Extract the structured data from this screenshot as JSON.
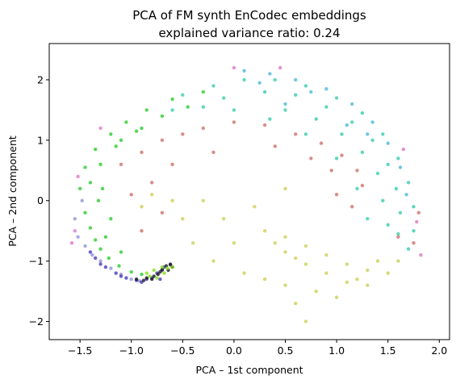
{
  "chart_data": {
    "type": "scatter",
    "title": "PCA of FM synth EnCodec embeddings",
    "subtitle": "explained variance ratio: 0.24",
    "xlabel": "PCA – 1st component",
    "ylabel": "PCA – 2nd component",
    "xlim": [
      -1.8,
      2.1
    ],
    "ylim": [
      -2.3,
      2.6
    ],
    "xticks": [
      -1.5,
      -1.0,
      -0.5,
      0.0,
      0.5,
      1.0,
      1.5,
      2.0
    ],
    "xtick_labels": [
      "−1.5",
      "−1.0",
      "−0.5",
      "0.0",
      "0.5",
      "1.0",
      "1.5",
      "2.0"
    ],
    "yticks": [
      -2,
      -1,
      0,
      1,
      2
    ],
    "ytick_labels": [
      "−2",
      "−1",
      "0",
      "1",
      "2"
    ],
    "grid": false,
    "legend": false,
    "series": [
      {
        "color": "#8b8fd6",
        "points": [
          [
            -1.52,
            -0.6
          ],
          [
            -1.45,
            -0.75
          ],
          [
            -1.38,
            -0.9
          ],
          [
            -1.3,
            -1.0
          ],
          [
            -1.2,
            -1.12
          ],
          [
            -1.1,
            -1.22
          ],
          [
            -1.0,
            -1.3
          ],
          [
            -0.92,
            -1.33
          ],
          [
            -1.55,
            -0.3
          ],
          [
            -1.48,
            0.0
          ]
        ]
      },
      {
        "color": "#3a2fb8",
        "points": [
          [
            -1.35,
            -0.95
          ],
          [
            -1.25,
            -1.1
          ],
          [
            -1.15,
            -1.2
          ],
          [
            -1.05,
            -1.28
          ],
          [
            -0.95,
            -1.32
          ],
          [
            -0.85,
            -1.3
          ],
          [
            -0.75,
            -1.2
          ],
          [
            -0.68,
            -1.1
          ],
          [
            -1.4,
            -0.85
          ],
          [
            -1.3,
            -1.05
          ],
          [
            -1.1,
            -1.25
          ],
          [
            -0.9,
            -1.35
          ],
          [
            -0.8,
            -1.28
          ],
          [
            -0.7,
            -1.15
          ],
          [
            -0.62,
            -1.05
          ],
          [
            -0.72,
            -1.3
          ]
        ]
      },
      {
        "color": "#111111",
        "points": [
          [
            -0.95,
            -1.3
          ],
          [
            -0.88,
            -1.32
          ],
          [
            -0.8,
            -1.3
          ],
          [
            -0.74,
            -1.22
          ],
          [
            -0.7,
            -1.14
          ],
          [
            -0.66,
            -1.08
          ],
          [
            -0.62,
            -1.06
          ],
          [
            -0.78,
            -1.25
          ],
          [
            -0.85,
            -1.28
          ],
          [
            -0.72,
            -1.18
          ],
          [
            -0.6,
            -1.1
          ],
          [
            -0.64,
            -1.15
          ]
        ]
      },
      {
        "color": "#20c820",
        "points": [
          [
            -1.45,
            -0.2
          ],
          [
            -1.4,
            -0.45
          ],
          [
            -1.35,
            -0.65
          ],
          [
            -1.3,
            -0.8
          ],
          [
            -1.22,
            -0.95
          ],
          [
            -1.12,
            -1.08
          ],
          [
            -1.0,
            -1.18
          ],
          [
            -0.9,
            -1.22
          ],
          [
            -1.5,
            0.2
          ],
          [
            -1.45,
            0.55
          ],
          [
            -1.35,
            0.85
          ],
          [
            -1.2,
            1.1
          ],
          [
            -1.05,
            1.3
          ],
          [
            -0.85,
            1.5
          ],
          [
            -0.6,
            1.68
          ],
          [
            -0.3,
            1.8
          ],
          [
            -1.4,
            0.3
          ],
          [
            -1.3,
            0.6
          ],
          [
            -1.15,
            0.9
          ],
          [
            -0.95,
            1.15
          ],
          [
            -0.7,
            1.4
          ],
          [
            -0.45,
            1.55
          ],
          [
            -1.25,
            -0.6
          ],
          [
            -1.1,
            -0.85
          ],
          [
            -1.28,
            0.2
          ],
          [
            -1.2,
            -0.3
          ],
          [
            -1.32,
            0.0
          ],
          [
            -0.9,
            1.2
          ],
          [
            -1.1,
            1.0
          ]
        ]
      },
      {
        "color": "#7ee012",
        "points": [
          [
            -0.85,
            -1.2
          ],
          [
            -0.78,
            -1.15
          ],
          [
            -0.7,
            -1.1
          ],
          [
            -0.65,
            -1.12
          ],
          [
            -0.75,
            -1.28
          ],
          [
            -0.82,
            -1.25
          ],
          [
            -0.68,
            -1.2
          ],
          [
            -0.6,
            -1.1
          ]
        ]
      },
      {
        "color": "#2ec9a8",
        "points": [
          [
            -0.5,
            1.75
          ],
          [
            -0.2,
            1.9
          ],
          [
            0.1,
            2.0
          ],
          [
            0.4,
            2.0
          ],
          [
            0.7,
            1.9
          ],
          [
            1.0,
            1.7
          ],
          [
            1.25,
            1.45
          ],
          [
            1.45,
            1.1
          ],
          [
            1.6,
            0.7
          ],
          [
            1.7,
            0.3
          ],
          [
            1.75,
            -0.1
          ],
          [
            1.75,
            -0.5
          ],
          [
            1.7,
            -0.8
          ],
          [
            -0.1,
            1.7
          ],
          [
            0.3,
            1.8
          ],
          [
            0.6,
            1.75
          ],
          [
            0.9,
            1.55
          ],
          [
            1.15,
            1.3
          ],
          [
            1.35,
            1.0
          ],
          [
            1.5,
            0.6
          ],
          [
            1.58,
            0.2
          ],
          [
            1.62,
            -0.2
          ],
          [
            1.6,
            -0.55
          ],
          [
            0.5,
            1.5
          ],
          [
            0.8,
            1.35
          ],
          [
            1.05,
            1.1
          ],
          [
            1.25,
            0.8
          ],
          [
            1.4,
            0.45
          ],
          [
            1.45,
            0.0
          ],
          [
            1.5,
            -0.4
          ],
          [
            1.3,
            -0.3
          ],
          [
            1.2,
            0.2
          ],
          [
            1.0,
            0.7
          ],
          [
            0.7,
            1.1
          ],
          [
            0.35,
            1.35
          ],
          [
            0.0,
            1.5
          ],
          [
            -0.3,
            1.55
          ],
          [
            -0.6,
            1.5
          ]
        ]
      },
      {
        "color": "#44b4d8",
        "points": [
          [
            0.1,
            2.15
          ],
          [
            0.35,
            2.1
          ],
          [
            0.6,
            2.0
          ],
          [
            0.9,
            1.85
          ],
          [
            1.15,
            1.6
          ],
          [
            1.35,
            1.3
          ],
          [
            1.5,
            0.95
          ],
          [
            1.62,
            0.55
          ],
          [
            1.68,
            0.1
          ],
          [
            0.25,
            1.95
          ],
          [
            0.75,
            1.8
          ],
          [
            1.3,
            1.1
          ],
          [
            0.5,
            1.6
          ],
          [
            1.1,
            1.25
          ]
        ]
      },
      {
        "color": "#c9cc4c",
        "points": [
          [
            0.3,
            -0.5
          ],
          [
            0.5,
            -0.6
          ],
          [
            0.7,
            -0.75
          ],
          [
            0.9,
            -0.9
          ],
          [
            1.1,
            -1.05
          ],
          [
            1.3,
            -1.15
          ],
          [
            1.5,
            -1.2
          ],
          [
            0.5,
            -0.85
          ],
          [
            0.7,
            -1.05
          ],
          [
            0.9,
            -1.2
          ],
          [
            1.1,
            -1.35
          ],
          [
            1.3,
            -1.4
          ],
          [
            0.8,
            -1.5
          ],
          [
            1.0,
            -1.6
          ],
          [
            1.2,
            -1.3
          ],
          [
            0.4,
            -0.7
          ],
          [
            0.6,
            -0.95
          ],
          [
            0.0,
            -0.7
          ],
          [
            -0.2,
            -1.0
          ],
          [
            0.1,
            -1.2
          ],
          [
            0.3,
            -1.3
          ],
          [
            0.5,
            -1.4
          ],
          [
            0.6,
            -1.7
          ],
          [
            0.7,
            -2.0
          ],
          [
            1.4,
            -1.0
          ],
          [
            1.6,
            -1.0
          ],
          [
            -0.4,
            -0.7
          ],
          [
            -0.1,
            -0.3
          ],
          [
            -0.3,
            0.0
          ],
          [
            -0.6,
            0.0
          ],
          [
            -0.8,
            0.1
          ],
          [
            -0.9,
            -0.1
          ],
          [
            -0.5,
            -0.3
          ],
          [
            0.2,
            -0.1
          ],
          [
            0.5,
            0.2
          ]
        ]
      },
      {
        "color": "#c86a60",
        "points": [
          [
            -1.1,
            0.6
          ],
          [
            -0.9,
            0.8
          ],
          [
            -0.7,
            1.0
          ],
          [
            -0.5,
            1.1
          ],
          [
            -0.3,
            1.2
          ],
          [
            0.0,
            1.3
          ],
          [
            0.3,
            1.25
          ],
          [
            0.6,
            1.1
          ],
          [
            0.85,
            0.95
          ],
          [
            1.05,
            0.75
          ],
          [
            1.2,
            0.5
          ],
          [
            1.25,
            0.25
          ],
          [
            0.95,
            0.5
          ],
          [
            0.75,
            0.7
          ],
          [
            -0.2,
            0.8
          ],
          [
            -0.6,
            0.6
          ],
          [
            -0.8,
            0.3
          ],
          [
            -1.0,
            0.1
          ],
          [
            -0.9,
            -0.5
          ],
          [
            -0.7,
            -0.2
          ],
          [
            0.4,
            0.9
          ],
          [
            1.15,
            -0.1
          ],
          [
            1.0,
            0.1
          ],
          [
            1.6,
            -0.6
          ],
          [
            1.8,
            -0.2
          ],
          [
            1.75,
            -0.7
          ]
        ]
      },
      {
        "color": "#d96fc0",
        "points": [
          [
            -1.58,
            -0.7
          ],
          [
            -1.55,
            -0.5
          ],
          [
            0.0,
            2.2
          ],
          [
            0.45,
            2.2
          ],
          [
            1.65,
            0.85
          ],
          [
            1.78,
            -0.35
          ],
          [
            1.82,
            -0.9
          ],
          [
            -1.52,
            0.4
          ],
          [
            -1.3,
            1.2
          ]
        ]
      }
    ]
  }
}
